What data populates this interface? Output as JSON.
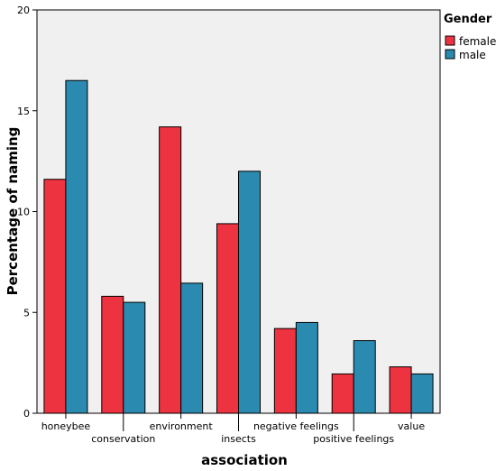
{
  "chart_data": {
    "type": "bar",
    "title": "",
    "xlabel": "association",
    "ylabel": "Percentage of naming",
    "ylim": [
      0,
      20
    ],
    "yticks": [
      0,
      5,
      10,
      15,
      20
    ],
    "grid": false,
    "legend_position": "top-right",
    "legend_title": "Gender",
    "categories": [
      "honeybee",
      "conservation",
      "environment",
      "insects",
      "negative feelings",
      "positive feelings",
      "value"
    ],
    "series": [
      {
        "name": "female",
        "color": "#ee3340",
        "values": [
          11.6,
          5.8,
          14.2,
          9.4,
          4.2,
          1.95,
          2.3
        ]
      },
      {
        "name": "male",
        "color": "#2a8ab0",
        "values": [
          16.5,
          5.5,
          6.45,
          12.0,
          4.5,
          3.6,
          1.95
        ]
      }
    ]
  }
}
